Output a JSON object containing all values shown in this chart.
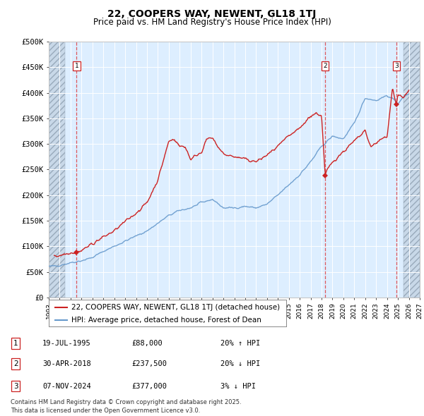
{
  "title": "22, COOPERS WAY, NEWENT, GL18 1TJ",
  "subtitle": "Price paid vs. HM Land Registry's House Price Index (HPI)",
  "ylabel_ticks": [
    "£0",
    "£50K",
    "£100K",
    "£150K",
    "£200K",
    "£250K",
    "£300K",
    "£350K",
    "£400K",
    "£450K",
    "£500K"
  ],
  "ytick_values": [
    0,
    50000,
    100000,
    150000,
    200000,
    250000,
    300000,
    350000,
    400000,
    450000,
    500000
  ],
  "ylim": [
    0,
    500000
  ],
  "xlim_start": 1993.0,
  "xlim_end": 2027.0,
  "x_tick_years": [
    1993,
    1994,
    1995,
    1996,
    1997,
    1998,
    1999,
    2000,
    2001,
    2002,
    2003,
    2004,
    2005,
    2006,
    2007,
    2008,
    2009,
    2010,
    2011,
    2012,
    2013,
    2014,
    2015,
    2016,
    2017,
    2018,
    2019,
    2020,
    2021,
    2022,
    2023,
    2024,
    2025,
    2026,
    2027
  ],
  "hpi_color": "#6699cc",
  "price_color": "#cc2222",
  "bg_color": "#ffffff",
  "plot_bg_color": "#ddeeff",
  "grid_color": "#ffffff",
  "sale1_x": 1995.55,
  "sale1_y": 88000,
  "sale2_x": 2018.33,
  "sale2_y": 237500,
  "sale3_x": 2024.85,
  "sale3_y": 377000,
  "hatch_left_end": 1994.5,
  "hatch_right_start": 2025.5,
  "legend_entries": [
    "22, COOPERS WAY, NEWENT, GL18 1TJ (detached house)",
    "HPI: Average price, detached house, Forest of Dean"
  ],
  "table_rows": [
    {
      "num": "1",
      "date": "19-JUL-1995",
      "price": "£88,000",
      "hpi": "20% ↑ HPI"
    },
    {
      "num": "2",
      "date": "30-APR-2018",
      "price": "£237,500",
      "hpi": "20% ↓ HPI"
    },
    {
      "num": "3",
      "date": "07-NOV-2024",
      "price": "£377,000",
      "hpi": "3% ↓ HPI"
    }
  ],
  "footer": "Contains HM Land Registry data © Crown copyright and database right 2025.\nThis data is licensed under the Open Government Licence v3.0.",
  "title_fontsize": 10,
  "subtitle_fontsize": 8.5,
  "tick_fontsize": 7.5,
  "legend_fontsize": 7.5,
  "table_fontsize": 7.5,
  "footer_fontsize": 6.0,
  "hpi_knots_x": [
    1993.0,
    1994.0,
    1995.0,
    1996.0,
    1997.0,
    1998.0,
    1999.0,
    2000.0,
    2001.0,
    2002.0,
    2003.0,
    2004.0,
    2005.0,
    2006.0,
    2007.0,
    2008.0,
    2009.0,
    2010.0,
    2011.0,
    2012.0,
    2013.0,
    2014.0,
    2015.0,
    2016.0,
    2017.0,
    2018.0,
    2018.5,
    2019.0,
    2020.0,
    2021.0,
    2022.0,
    2023.0,
    2024.0,
    2025.0,
    2026.0
  ],
  "hpi_knots_y": [
    60000,
    63000,
    68000,
    72000,
    78000,
    90000,
    100000,
    110000,
    120000,
    130000,
    145000,
    160000,
    170000,
    175000,
    185000,
    192000,
    175000,
    175000,
    178000,
    175000,
    182000,
    200000,
    220000,
    240000,
    265000,
    295000,
    305000,
    315000,
    310000,
    340000,
    390000,
    385000,
    395000,
    380000,
    400000
  ],
  "price_knots_x": [
    1993.5,
    1994.5,
    1995.0,
    1995.55,
    1996.0,
    1997.0,
    1998.0,
    1999.0,
    2000.0,
    2001.0,
    2002.0,
    2003.0,
    2004.0,
    2004.5,
    2005.0,
    2005.5,
    2006.0,
    2007.0,
    2007.5,
    2008.0,
    2009.0,
    2010.0,
    2011.0,
    2012.0,
    2013.0,
    2014.0,
    2015.0,
    2016.0,
    2017.0,
    2017.5,
    2018.0,
    2018.33,
    2018.5,
    2019.0,
    2020.0,
    2021.0,
    2022.0,
    2022.5,
    2023.0,
    2023.5,
    2024.0,
    2024.5,
    2024.85,
    2025.0,
    2025.5,
    2026.0
  ],
  "price_knots_y": [
    80000,
    85000,
    88000,
    88000,
    92000,
    105000,
    118000,
    130000,
    148000,
    165000,
    185000,
    230000,
    305000,
    310000,
    295000,
    295000,
    270000,
    285000,
    310000,
    310000,
    280000,
    275000,
    270000,
    265000,
    278000,
    295000,
    315000,
    330000,
    355000,
    360000,
    355000,
    237500,
    248000,
    265000,
    285000,
    305000,
    325000,
    295000,
    300000,
    310000,
    315000,
    410000,
    377000,
    395000,
    390000,
    405000
  ]
}
